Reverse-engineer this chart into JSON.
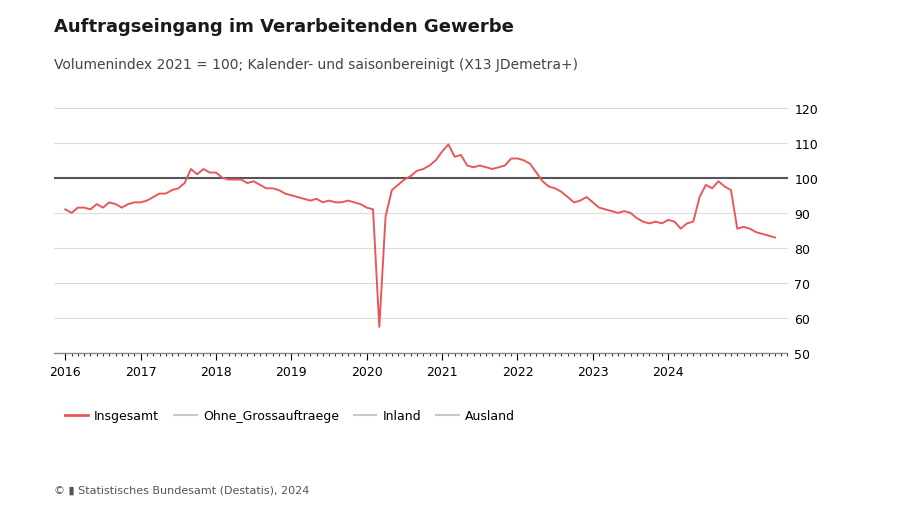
{
  "title": "Auftragseingang im Verarbeitenden Gewerbe",
  "subtitle": "Volumenindex 2021 = 100; Kalender- und saisonbereinigt (X13 JDemetra+)",
  "footer": "© � Statistisches Bundesamt (Destatis), 2024",
  "background_color": "#ffffff",
  "line_color_insgesamt": "#e8585a",
  "line_color_others": "#c8c8c8",
  "reference_line_y": 100,
  "reference_line_color": "#555555",
  "ylim": [
    50,
    125
  ],
  "yticks": [
    50,
    60,
    70,
    80,
    90,
    100,
    110,
    120
  ],
  "legend_labels": [
    "Insgesamt",
    "Ohne_Grossauftraege",
    "Inland",
    "Ausland"
  ],
  "insgesamt_data": [
    91.0,
    90.0,
    91.5,
    91.5,
    91.0,
    92.5,
    91.5,
    93.0,
    92.5,
    91.5,
    92.5,
    93.0,
    93.0,
    93.5,
    94.5,
    95.5,
    95.5,
    96.5,
    97.0,
    98.5,
    102.5,
    101.0,
    102.5,
    101.5,
    101.5,
    100.0,
    99.5,
    99.5,
    99.5,
    98.5,
    99.0,
    98.0,
    97.0,
    97.0,
    96.5,
    95.5,
    95.0,
    94.5,
    94.0,
    93.5,
    94.0,
    93.0,
    93.5,
    93.0,
    93.0,
    93.5,
    93.0,
    92.5,
    91.5,
    91.0,
    57.5,
    89.0,
    96.5,
    98.0,
    99.5,
    100.5,
    102.0,
    102.5,
    103.5,
    105.0,
    107.5,
    109.5,
    106.0,
    106.5,
    103.5,
    103.0,
    103.5,
    103.0,
    102.5,
    103.0,
    103.5,
    105.5,
    105.5,
    105.0,
    104.0,
    101.5,
    99.0,
    97.5,
    97.0,
    96.0,
    94.5,
    93.0,
    93.5,
    94.5,
    93.0,
    91.5,
    91.0,
    90.5,
    90.0,
    90.5,
    90.0,
    88.5,
    87.5,
    87.0,
    87.5,
    87.0,
    88.0,
    87.5,
    85.5,
    87.0,
    87.5,
    94.5,
    98.0,
    97.0,
    99.0,
    97.5,
    96.5,
    85.5,
    86.0,
    85.5,
    84.5,
    84.0,
    83.5,
    83.0
  ],
  "x_start": 2016.0,
  "xlim": [
    2015.85,
    2024.7
  ],
  "xtick_years": [
    2016,
    2017,
    2018,
    2019,
    2020,
    2021,
    2022,
    2023,
    2024
  ],
  "grid_color": "#dddddd",
  "title_fontsize": 13,
  "subtitle_fontsize": 10,
  "tick_fontsize": 9,
  "legend_fontsize": 9,
  "footer_fontsize": 8
}
